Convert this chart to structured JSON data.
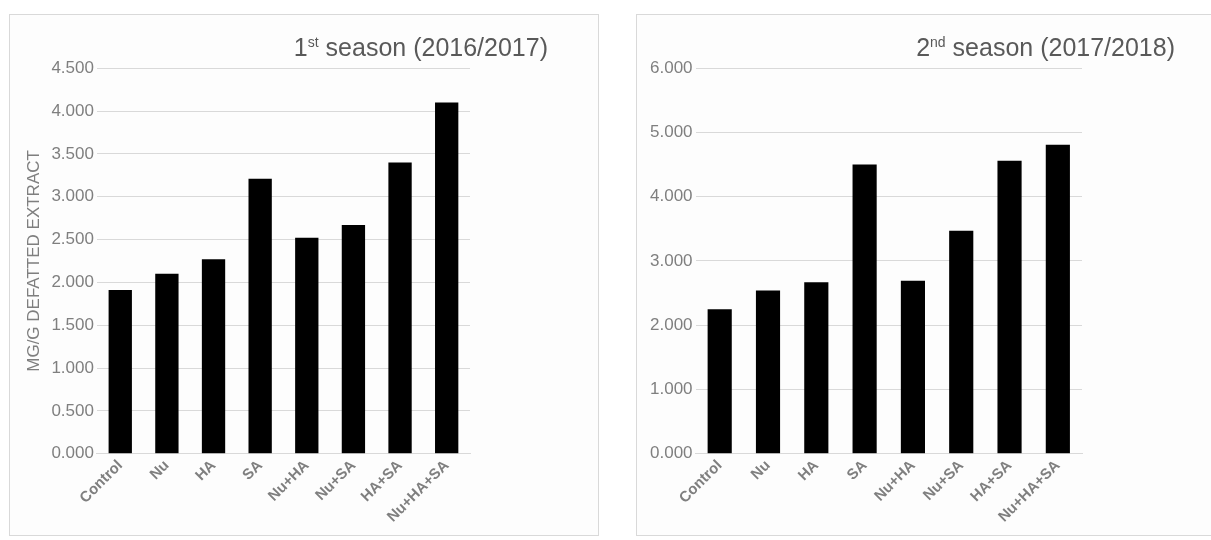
{
  "chart_data": [
    {
      "type": "bar",
      "title": "1$^{st}$ season  (2016/2017)",
      "ylabel": "MG/G DEFATTED EXTRACT",
      "categories": [
        "Control",
        "Nu",
        "HA",
        "SA",
        "Nu+HA",
        "Nu+SA",
        "HA+SA",
        "Nu+HA+SA"
      ],
      "values": [
        1.91,
        2.1,
        2.27,
        3.21,
        2.52,
        2.67,
        3.4,
        4.1
      ],
      "color": "#000000",
      "ylim": [
        0,
        4.5
      ],
      "yticks": [
        {
          "value": 0,
          "label": "0.000"
        },
        {
          "value": 0.5,
          "label": "0.500"
        },
        {
          "value": 1,
          "label": "1.000"
        },
        {
          "value": 1.5,
          "label": "1.500"
        },
        {
          "value": 2,
          "label": "2.000"
        },
        {
          "value": 2.5,
          "label": "2.500"
        },
        {
          "value": 3,
          "label": "3.000"
        },
        {
          "value": 3.5,
          "label": "3.500"
        },
        {
          "value": 4,
          "label": "4.000"
        },
        {
          "value": 4.5,
          "label": "4.500"
        }
      ],
      "grid": "y",
      "legend": false
    },
    {
      "type": "bar",
      "title": "2$^{nd}$ season  (2017/2018)",
      "categories": [
        "Control",
        "Nu",
        "HA",
        "SA",
        "Nu+HA",
        "Nu+SA",
        "HA+SA",
        "Nu+HA+SA"
      ],
      "values": [
        2.25,
        2.54,
        2.67,
        4.5,
        2.69,
        3.47,
        4.56,
        4.81
      ],
      "color": "#000000",
      "ylim": [
        0,
        6
      ],
      "yticks": [
        {
          "value": 0,
          "label": "0.000"
        },
        {
          "value": 1,
          "label": "1.000"
        },
        {
          "value": 2,
          "label": "2.000"
        },
        {
          "value": 3,
          "label": "3.000"
        },
        {
          "value": 4,
          "label": "4.000"
        },
        {
          "value": 5,
          "label": "5.000"
        },
        {
          "value": 6,
          "label": "6.000"
        }
      ],
      "grid": "y",
      "legend": false
    }
  ]
}
